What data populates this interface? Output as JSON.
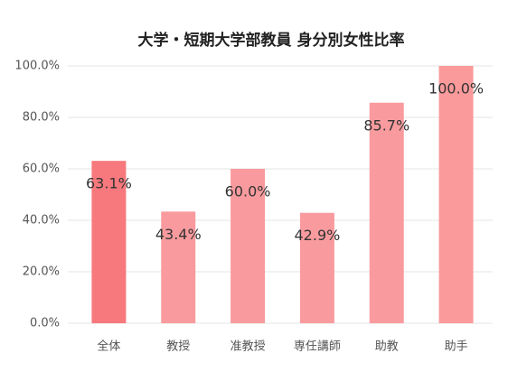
{
  "chart_data": {
    "type": "bar",
    "title": "大学・短期大学部教員 身分別女性比率",
    "categories": [
      "全体",
      "教授",
      "准教授",
      "専任講師",
      "助教",
      "助手"
    ],
    "values": [
      63.1,
      43.4,
      60.0,
      42.9,
      85.7,
      100.0
    ],
    "value_labels": [
      "63.1%",
      "43.4%",
      "60.0%",
      "42.9%",
      "85.7%",
      "100.0%"
    ],
    "colors": [
      "#f7797d",
      "#f99b9e",
      "#f99b9e",
      "#f99b9e",
      "#f99b9e",
      "#fa9a9b"
    ],
    "ylim": [
      0,
      100
    ],
    "yticks": [
      {
        "value": 0,
        "label": "0.0%"
      },
      {
        "value": 20,
        "label": "20.0%"
      },
      {
        "value": 40,
        "label": "40.0%"
      },
      {
        "value": 60,
        "label": "60.0%"
      },
      {
        "value": 80,
        "label": "80.0%"
      },
      {
        "value": 100,
        "label": "100.0%"
      }
    ],
    "grid": true
  }
}
